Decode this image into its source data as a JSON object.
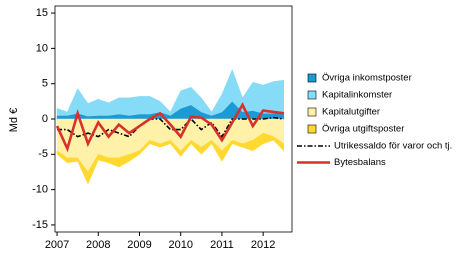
{
  "chart_data": {
    "type": "stacked-area",
    "ylabel": "Md €",
    "x": [
      2007,
      2007.25,
      2007.5,
      2007.75,
      2008,
      2008.25,
      2008.5,
      2008.75,
      2009,
      2009.25,
      2009.5,
      2009.75,
      2010,
      2010.25,
      2010.5,
      2010.75,
      2011,
      2011.25,
      2011.5,
      2011.75,
      2012,
      2012.25,
      2012.5
    ],
    "series": [
      {
        "name": "Övriga inkomstposter",
        "kind": "area",
        "color": "#1c9ad6",
        "values": [
          0.5,
          0.5,
          0.8,
          0.4,
          0.5,
          0.5,
          0.7,
          0.5,
          0.7,
          0.7,
          1.0,
          0.5,
          1.5,
          2.0,
          1.0,
          0.5,
          1.0,
          2.5,
          1.0,
          1.2,
          0.8,
          0.8,
          1.0
        ]
      },
      {
        "name": "Kapitalinkomster",
        "kind": "area",
        "color": "#86dcf7",
        "values": [
          1.0,
          0.5,
          3.5,
          1.8,
          2.3,
          1.8,
          2.3,
          2.5,
          2.5,
          2.5,
          1.5,
          0.5,
          2.5,
          2.5,
          2.0,
          0.5,
          2.5,
          4.5,
          2.0,
          4.0,
          4.0,
          4.5,
          4.5
        ]
      },
      {
        "name": "Kapitalutgifter",
        "kind": "area",
        "color": "#fff2a8",
        "values": [
          -4.5,
          -5.5,
          -5.5,
          -7.5,
          -5,
          -5.5,
          -5.5,
          -5,
          -4.5,
          -3,
          -3.5,
          -3,
          -4.5,
          -3,
          -4,
          -3,
          -4.5,
          -3,
          -3.5,
          -3,
          -2,
          -2.5,
          -3.5
        ]
      },
      {
        "name": "Övriga utgiftsposter",
        "kind": "area",
        "color": "#ffd930",
        "values": [
          -0.5,
          -0.7,
          -0.5,
          -1.7,
          -0.8,
          -0.7,
          -1.3,
          -1.0,
          -0.5,
          -0.5,
          -0.5,
          -0.5,
          -0.8,
          -0.5,
          -1.0,
          -0.5,
          -1.5,
          -0.5,
          -0.5,
          -1.5,
          -1.5,
          -0.5,
          -1.0
        ]
      },
      {
        "name": "Utrikessaldo för varor och tj.",
        "kind": "line",
        "dashed": true,
        "color": "#000000",
        "values": [
          -1.5,
          -1.5,
          -2.5,
          -2.0,
          -2.5,
          -1.5,
          -2.0,
          -2.5,
          -1.0,
          0,
          0,
          -1.5,
          -1.5,
          0,
          -1.5,
          -0.5,
          -2.5,
          0,
          0,
          0,
          0,
          0.2,
          0
        ]
      },
      {
        "name": "Bytesbalans",
        "kind": "line",
        "dashed": false,
        "color": "#d9302c",
        "values": [
          -1,
          -4.2,
          0.8,
          -3.5,
          -0.5,
          -2.5,
          -0.8,
          -2.0,
          -1.0,
          0,
          0.8,
          -0.8,
          -2.5,
          0.3,
          0.2,
          -0.8,
          -3.0,
          -0.5,
          2.0,
          -1.0,
          1.2,
          1.0,
          0.8
        ]
      }
    ],
    "xlim": [
      2006.95,
      2012.7
    ],
    "xticks": [
      2007,
      2008,
      2009,
      2010,
      2011,
      2012
    ],
    "ylim": [
      -16,
      16
    ],
    "yticks": [
      -15,
      -10,
      -5,
      0,
      5,
      10,
      15
    ]
  }
}
